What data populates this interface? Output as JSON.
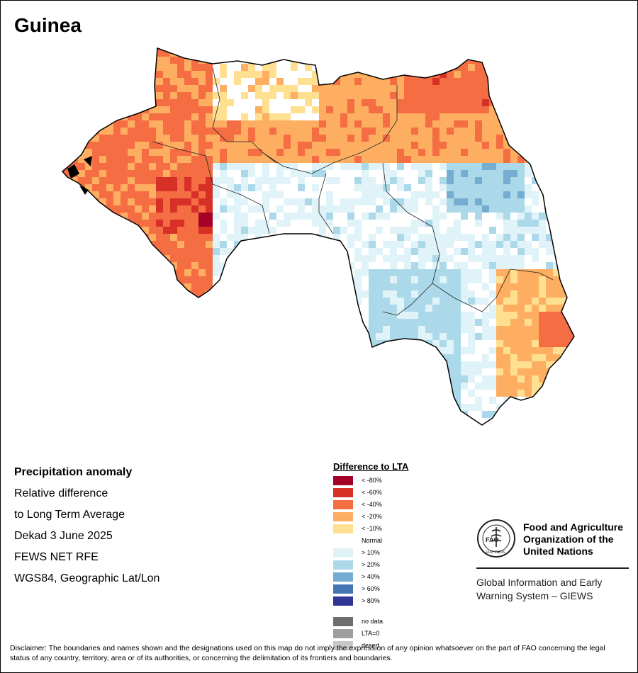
{
  "map": {
    "title": "Guinea"
  },
  "info": {
    "heading": "Precipitation anomaly",
    "lines": [
      "Relative difference",
      "to Long Term Average",
      "Dekad 3 June 2025",
      "FEWS NET RFE",
      "WGS84, Geographic Lat/Lon"
    ]
  },
  "legend": {
    "title": "Difference to LTA",
    "classes": [
      {
        "label": "< -80%",
        "color": "#a50026"
      },
      {
        "label": "< -60%",
        "color": "#d73027"
      },
      {
        "label": "< -40%",
        "color": "#f46d43"
      },
      {
        "label": "< -20%",
        "color": "#fdae61"
      },
      {
        "label": "< -10%",
        "color": "#fee090"
      },
      {
        "label": "Normal",
        "color": "#ffffff"
      },
      {
        "label": "> 10%",
        "color": "#e0f3f8"
      },
      {
        "label": "> 20%",
        "color": "#abd9e9"
      },
      {
        "label": "> 40%",
        "color": "#74add1"
      },
      {
        "label": "> 60%",
        "color": "#4575b4"
      },
      {
        "label": "> 80%",
        "color": "#313695"
      }
    ],
    "extra": [
      {
        "label": "no data",
        "color": "#6e6e6e"
      },
      {
        "label": "LTA=0",
        "color": "#9e9e9e"
      },
      {
        "label": "desert",
        "color": "#c8c8c8"
      }
    ]
  },
  "org": {
    "logo_text": "FAO",
    "logo_motto": "FIAT PANIS",
    "name_lines": [
      "Food and Agriculture",
      "Organization of the",
      "United Nations"
    ],
    "system_lines": [
      "Global Information and Early",
      "Warning System – GIEWS"
    ]
  },
  "disclaimer": "Disclaimer: The boundaries and names shown and the designations used on this map do not imply the expression of any opinion whatsoever on the part of FAO concerning the legal status of any country, territory, area or of its authorities, or concerning the delimitation of its frontiers and boundaries."
}
